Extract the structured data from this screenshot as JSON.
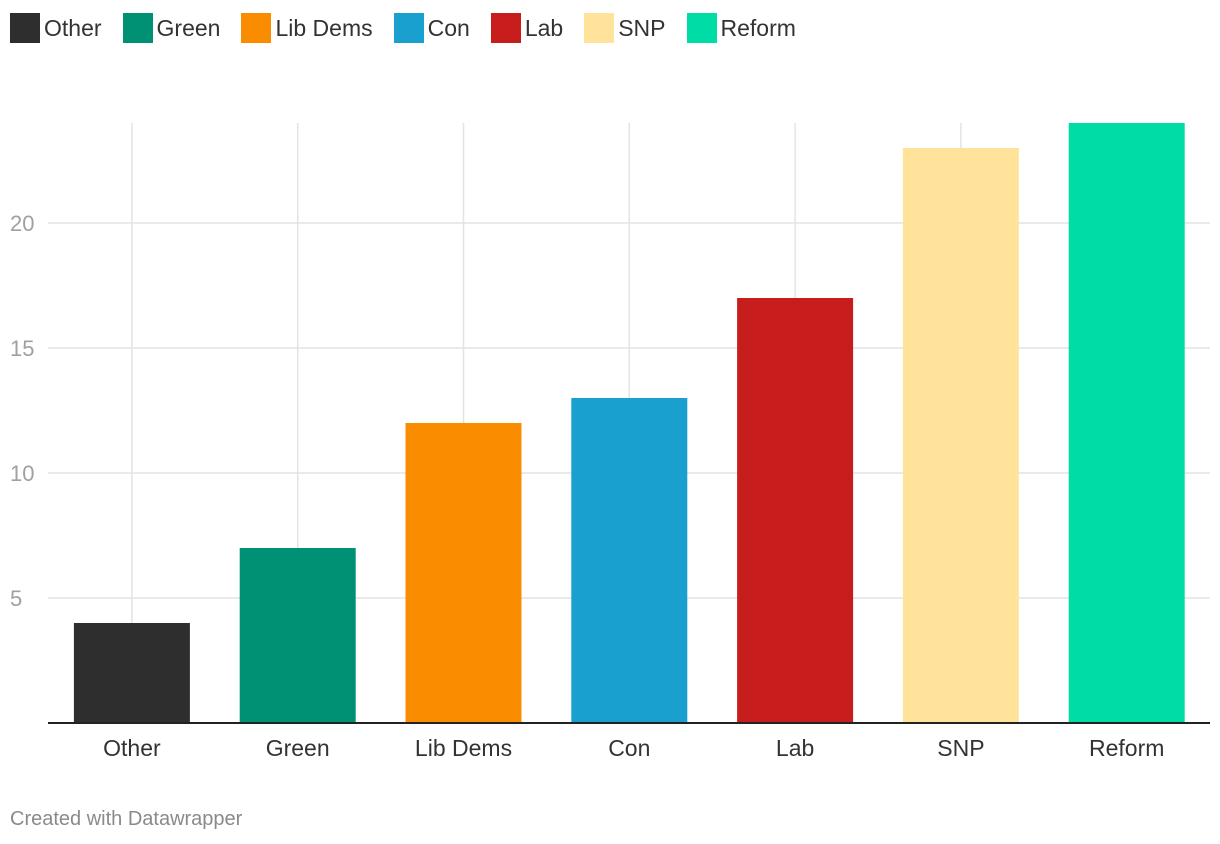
{
  "chart_data": {
    "type": "bar",
    "title": "",
    "xlabel": "",
    "ylabel": "",
    "categories": [
      "Other",
      "Green",
      "Lib Dems",
      "Con",
      "Lab",
      "SNP",
      "Reform"
    ],
    "values": [
      4,
      7,
      12,
      13,
      17,
      23,
      24
    ],
    "colors": [
      "#2e2e2e",
      "#009175",
      "#fa8c00",
      "#1aa0ce",
      "#c71e1d",
      "#ffe39b",
      "#00dca6"
    ],
    "yticks": [
      "5",
      "10",
      "15",
      "20"
    ],
    "ylim": [
      0,
      24
    ],
    "grid": true,
    "legend_position": "top-left"
  },
  "legend": [
    {
      "label": "Other",
      "color": "#2e2e2e"
    },
    {
      "label": "Green",
      "color": "#009175"
    },
    {
      "label": "Lib Dems",
      "color": "#fa8c00"
    },
    {
      "label": "Con",
      "color": "#1aa0ce"
    },
    {
      "label": "Lab",
      "color": "#c71e1d"
    },
    {
      "label": "SNP",
      "color": "#ffe39b"
    },
    {
      "label": "Reform",
      "color": "#00dca6"
    }
  ],
  "footer": {
    "credit": "Created with Datawrapper"
  }
}
